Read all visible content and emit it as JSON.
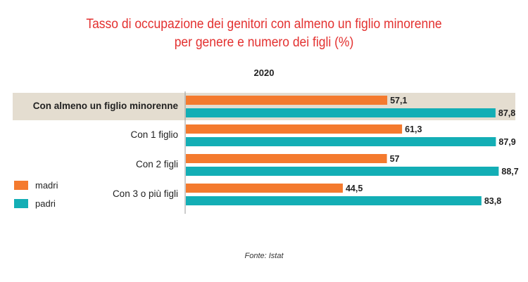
{
  "title_line1": "Tasso di occupazione dei genitori con almeno un figlio minorenne",
  "title_line2": "per genere e numero dei figli (%)",
  "year": "2020",
  "source": "Fonte: Istat",
  "colors": {
    "madri": "#f47a2e",
    "padri": "#13aeb5",
    "highlight_band": "#e4ddd0",
    "title": "#e3302f"
  },
  "legend": [
    {
      "label": "madri",
      "color": "#f47a2e"
    },
    {
      "label": "padri",
      "color": "#13aeb5"
    }
  ],
  "chart_data": {
    "type": "bar",
    "orientation": "horizontal",
    "title": "Tasso di occupazione dei genitori con almeno un figlio minorenne per genere e numero dei figli (%)",
    "subtitle": "2020",
    "categories": [
      "Con almeno un figlio minorenne",
      "Con 1 figlio",
      "Con 2 figli",
      "Con 3 o più figli"
    ],
    "series": [
      {
        "name": "madri",
        "values": [
          57.1,
          61.3,
          57,
          44.5
        ],
        "labels": [
          "57,1",
          "61,3",
          "57",
          "44,5"
        ]
      },
      {
        "name": "padri",
        "values": [
          87.8,
          87.9,
          88.7,
          83.8
        ],
        "labels": [
          "87,8",
          "87,9",
          "88,7",
          "83,8"
        ]
      }
    ],
    "highlighted_category": "Con almeno un figlio minorenne",
    "xlim": [
      0,
      100
    ],
    "grid": false,
    "legend_position": "left"
  }
}
